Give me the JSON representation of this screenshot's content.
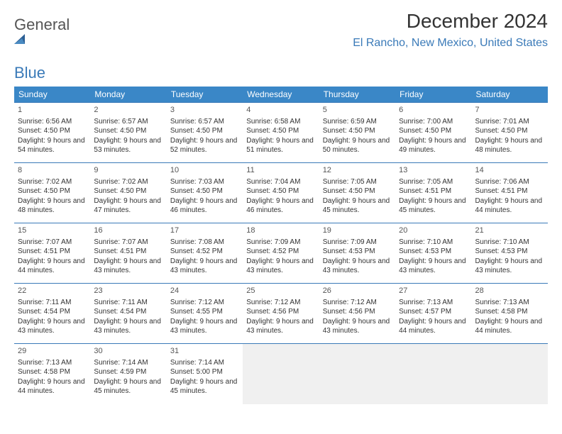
{
  "logo": {
    "general": "General",
    "blue": "Blue"
  },
  "title": "December 2024",
  "location": "El Rancho, New Mexico, United States",
  "colors": {
    "header_bg": "#3a87c7",
    "header_text": "#ffffff",
    "accent": "#3a7ab8",
    "cell_border": "#3a7ab8",
    "empty_bg": "#f0f0f0",
    "text": "#333333"
  },
  "weekdays": [
    "Sunday",
    "Monday",
    "Tuesday",
    "Wednesday",
    "Thursday",
    "Friday",
    "Saturday"
  ],
  "days": [
    {
      "n": "1",
      "sr": "6:56 AM",
      "ss": "4:50 PM",
      "dl": "9 hours and 54 minutes."
    },
    {
      "n": "2",
      "sr": "6:57 AM",
      "ss": "4:50 PM",
      "dl": "9 hours and 53 minutes."
    },
    {
      "n": "3",
      "sr": "6:57 AM",
      "ss": "4:50 PM",
      "dl": "9 hours and 52 minutes."
    },
    {
      "n": "4",
      "sr": "6:58 AM",
      "ss": "4:50 PM",
      "dl": "9 hours and 51 minutes."
    },
    {
      "n": "5",
      "sr": "6:59 AM",
      "ss": "4:50 PM",
      "dl": "9 hours and 50 minutes."
    },
    {
      "n": "6",
      "sr": "7:00 AM",
      "ss": "4:50 PM",
      "dl": "9 hours and 49 minutes."
    },
    {
      "n": "7",
      "sr": "7:01 AM",
      "ss": "4:50 PM",
      "dl": "9 hours and 48 minutes."
    },
    {
      "n": "8",
      "sr": "7:02 AM",
      "ss": "4:50 PM",
      "dl": "9 hours and 48 minutes."
    },
    {
      "n": "9",
      "sr": "7:02 AM",
      "ss": "4:50 PM",
      "dl": "9 hours and 47 minutes."
    },
    {
      "n": "10",
      "sr": "7:03 AM",
      "ss": "4:50 PM",
      "dl": "9 hours and 46 minutes."
    },
    {
      "n": "11",
      "sr": "7:04 AM",
      "ss": "4:50 PM",
      "dl": "9 hours and 46 minutes."
    },
    {
      "n": "12",
      "sr": "7:05 AM",
      "ss": "4:50 PM",
      "dl": "9 hours and 45 minutes."
    },
    {
      "n": "13",
      "sr": "7:05 AM",
      "ss": "4:51 PM",
      "dl": "9 hours and 45 minutes."
    },
    {
      "n": "14",
      "sr": "7:06 AM",
      "ss": "4:51 PM",
      "dl": "9 hours and 44 minutes."
    },
    {
      "n": "15",
      "sr": "7:07 AM",
      "ss": "4:51 PM",
      "dl": "9 hours and 44 minutes."
    },
    {
      "n": "16",
      "sr": "7:07 AM",
      "ss": "4:51 PM",
      "dl": "9 hours and 43 minutes."
    },
    {
      "n": "17",
      "sr": "7:08 AM",
      "ss": "4:52 PM",
      "dl": "9 hours and 43 minutes."
    },
    {
      "n": "18",
      "sr": "7:09 AM",
      "ss": "4:52 PM",
      "dl": "9 hours and 43 minutes."
    },
    {
      "n": "19",
      "sr": "7:09 AM",
      "ss": "4:53 PM",
      "dl": "9 hours and 43 minutes."
    },
    {
      "n": "20",
      "sr": "7:10 AM",
      "ss": "4:53 PM",
      "dl": "9 hours and 43 minutes."
    },
    {
      "n": "21",
      "sr": "7:10 AM",
      "ss": "4:53 PM",
      "dl": "9 hours and 43 minutes."
    },
    {
      "n": "22",
      "sr": "7:11 AM",
      "ss": "4:54 PM",
      "dl": "9 hours and 43 minutes."
    },
    {
      "n": "23",
      "sr": "7:11 AM",
      "ss": "4:54 PM",
      "dl": "9 hours and 43 minutes."
    },
    {
      "n": "24",
      "sr": "7:12 AM",
      "ss": "4:55 PM",
      "dl": "9 hours and 43 minutes."
    },
    {
      "n": "25",
      "sr": "7:12 AM",
      "ss": "4:56 PM",
      "dl": "9 hours and 43 minutes."
    },
    {
      "n": "26",
      "sr": "7:12 AM",
      "ss": "4:56 PM",
      "dl": "9 hours and 43 minutes."
    },
    {
      "n": "27",
      "sr": "7:13 AM",
      "ss": "4:57 PM",
      "dl": "9 hours and 44 minutes."
    },
    {
      "n": "28",
      "sr": "7:13 AM",
      "ss": "4:58 PM",
      "dl": "9 hours and 44 minutes."
    },
    {
      "n": "29",
      "sr": "7:13 AM",
      "ss": "4:58 PM",
      "dl": "9 hours and 44 minutes."
    },
    {
      "n": "30",
      "sr": "7:14 AM",
      "ss": "4:59 PM",
      "dl": "9 hours and 45 minutes."
    },
    {
      "n": "31",
      "sr": "7:14 AM",
      "ss": "5:00 PM",
      "dl": "9 hours and 45 minutes."
    }
  ],
  "labels": {
    "sunrise": "Sunrise: ",
    "sunset": "Sunset: ",
    "daylight": "Daylight: "
  },
  "layout": {
    "start_weekday": 0,
    "trailing_empty": 4
  }
}
